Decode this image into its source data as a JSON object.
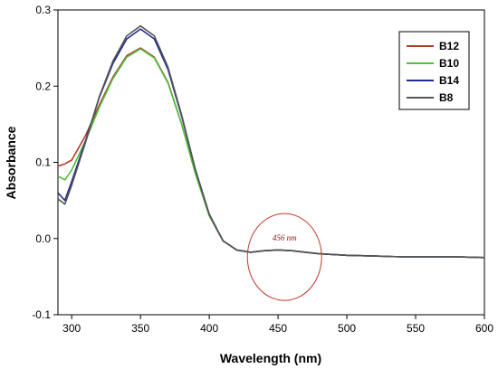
{
  "chart_data": {
    "type": "line",
    "xlabel": "Wavelength (nm)",
    "ylabel": "Absorbance",
    "xlim": [
      290,
      600
    ],
    "ylim": [
      -0.1,
      0.3
    ],
    "xticks": [
      300,
      350,
      400,
      450,
      500,
      550,
      600
    ],
    "yticks": [
      -0.1,
      0.0,
      0.1,
      0.2,
      0.3
    ],
    "xtick_labels": [
      "300",
      "350",
      "400",
      "450",
      "500",
      "550",
      "600"
    ],
    "ytick_labels": [
      "-0.1",
      "0.0",
      "0.1",
      "0.2",
      "0.3"
    ],
    "grid": false,
    "legend_position": "top-right",
    "series": [
      {
        "name": "B12",
        "color": "#b23a2a",
        "x": [
          290,
          295,
          300,
          310,
          320,
          330,
          340,
          350,
          360,
          370,
          380,
          390,
          400,
          410,
          420,
          430,
          440,
          450,
          460,
          470,
          480,
          490,
          500,
          520,
          540,
          560,
          580,
          600
        ],
        "y": [
          0.095,
          0.098,
          0.103,
          0.135,
          0.175,
          0.212,
          0.24,
          0.25,
          0.238,
          0.205,
          0.15,
          0.085,
          0.03,
          -0.003,
          -0.015,
          -0.018,
          -0.016,
          -0.015,
          -0.016,
          -0.018,
          -0.02,
          -0.021,
          -0.022,
          -0.023,
          -0.024,
          -0.024,
          -0.024,
          -0.025
        ]
      },
      {
        "name": "B10",
        "color": "#4cc23a",
        "x": [
          290,
          295,
          300,
          310,
          320,
          330,
          340,
          350,
          360,
          370,
          380,
          390,
          400,
          410,
          420,
          430,
          440,
          450,
          460,
          470,
          480,
          490,
          500,
          520,
          540,
          560,
          580,
          600
        ],
        "y": [
          0.082,
          0.077,
          0.09,
          0.128,
          0.172,
          0.21,
          0.238,
          0.249,
          0.237,
          0.204,
          0.15,
          0.085,
          0.03,
          -0.003,
          -0.015,
          -0.018,
          -0.016,
          -0.015,
          -0.016,
          -0.018,
          -0.02,
          -0.021,
          -0.022,
          -0.023,
          -0.024,
          -0.024,
          -0.024,
          -0.025
        ]
      },
      {
        "name": "B14",
        "color": "#1f2b8f",
        "x": [
          290,
          295,
          300,
          310,
          320,
          330,
          340,
          350,
          360,
          370,
          380,
          390,
          400,
          410,
          420,
          430,
          440,
          450,
          460,
          470,
          480,
          490,
          500,
          520,
          540,
          560,
          580,
          600
        ],
        "y": [
          0.06,
          0.05,
          0.075,
          0.128,
          0.185,
          0.23,
          0.262,
          0.275,
          0.262,
          0.222,
          0.16,
          0.09,
          0.032,
          -0.003,
          -0.015,
          -0.018,
          -0.016,
          -0.015,
          -0.016,
          -0.018,
          -0.02,
          -0.021,
          -0.022,
          -0.023,
          -0.024,
          -0.024,
          -0.024,
          -0.025
        ]
      },
      {
        "name": "B8",
        "color": "#555555",
        "x": [
          290,
          295,
          300,
          310,
          320,
          330,
          340,
          350,
          360,
          370,
          380,
          390,
          400,
          410,
          420,
          430,
          440,
          450,
          460,
          470,
          480,
          490,
          500,
          520,
          540,
          560,
          580,
          600
        ],
        "y": [
          0.052,
          0.045,
          0.07,
          0.126,
          0.186,
          0.233,
          0.266,
          0.279,
          0.266,
          0.225,
          0.162,
          0.09,
          0.032,
          -0.003,
          -0.015,
          -0.018,
          -0.016,
          -0.015,
          -0.016,
          -0.018,
          -0.02,
          -0.021,
          -0.022,
          -0.023,
          -0.024,
          -0.024,
          -0.024,
          -0.025
        ]
      }
    ],
    "annotations": [
      {
        "text": "456 nm",
        "x": 456,
        "y": -0.01,
        "shape": "ellipse",
        "color": "#c0392b"
      }
    ]
  }
}
